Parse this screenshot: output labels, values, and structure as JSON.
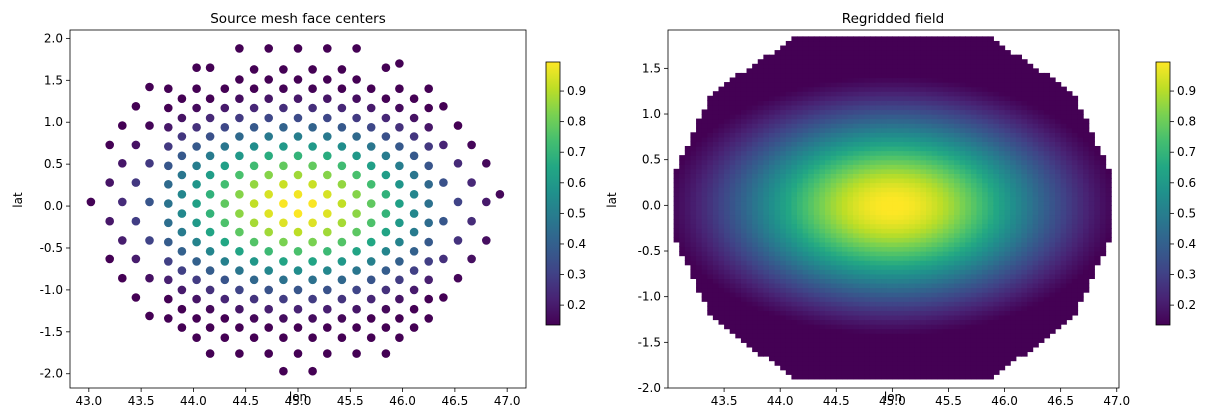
{
  "chart_data": [
    {
      "type": "scatter",
      "title": "Source mesh face centers",
      "xlabel": "lon",
      "ylabel": "lat",
      "xlim": [
        42.82,
        47.18
      ],
      "ylim": [
        -2.17,
        2.1
      ],
      "xticks": [
        "43.0",
        "43.5",
        "44.0",
        "44.5",
        "45.0",
        "45.5",
        "46.0",
        "46.5",
        "47.0"
      ],
      "yticks": [
        "-2.0",
        "-1.5",
        "-1.0",
        "-0.5",
        "0.0",
        "0.5",
        "1.0",
        "1.5",
        "2.0"
      ],
      "colorbar": {
        "ticks": [
          "0.2",
          "0.3",
          "0.4",
          "0.5",
          "0.6",
          "0.7",
          "0.8",
          "0.9"
        ],
        "vmin": 0.135,
        "vmax": 0.995
      },
      "colormap": "viridis",
      "center": [
        45.0,
        0.0
      ],
      "field": "exp(-(0.5*dlon^2 + 1.0*dlat^2))",
      "points": [
        [
          43.02,
          0.05
        ],
        [
          43.2,
          0.73
        ],
        [
          43.2,
          0.28
        ],
        [
          43.2,
          -0.18
        ],
        [
          43.2,
          -0.63
        ],
        [
          43.32,
          0.96
        ],
        [
          43.32,
          0.51
        ],
        [
          43.32,
          0.05
        ],
        [
          43.32,
          -0.41
        ],
        [
          43.32,
          -0.86
        ],
        [
          43.45,
          1.19
        ],
        [
          43.45,
          0.73
        ],
        [
          43.45,
          0.28
        ],
        [
          43.45,
          -0.18
        ],
        [
          43.45,
          -0.63
        ],
        [
          43.45,
          -1.09
        ],
        [
          43.58,
          1.42
        ],
        [
          43.58,
          0.96
        ],
        [
          43.58,
          0.51
        ],
        [
          43.58,
          0.05
        ],
        [
          43.58,
          -0.41
        ],
        [
          43.58,
          -0.86
        ],
        [
          43.58,
          -1.31
        ],
        [
          43.76,
          1.4
        ],
        [
          43.76,
          1.17
        ],
        [
          43.76,
          0.94
        ],
        [
          43.76,
          0.71
        ],
        [
          43.76,
          0.48
        ],
        [
          43.76,
          0.26
        ],
        [
          43.76,
          0.03
        ],
        [
          43.76,
          -0.2
        ],
        [
          43.76,
          -0.43
        ],
        [
          43.76,
          -0.66
        ],
        [
          43.76,
          -0.88
        ],
        [
          43.76,
          -1.11
        ],
        [
          43.76,
          -1.34
        ],
        [
          43.89,
          1.28
        ],
        [
          43.89,
          1.05
        ],
        [
          43.89,
          0.83
        ],
        [
          43.89,
          0.6
        ],
        [
          43.89,
          0.37
        ],
        [
          43.89,
          0.14
        ],
        [
          43.89,
          -0.09
        ],
        [
          43.89,
          -0.31
        ],
        [
          43.89,
          -0.54
        ],
        [
          43.89,
          -0.77
        ],
        [
          43.89,
          -1.0
        ],
        [
          43.89,
          -1.23
        ],
        [
          43.89,
          -1.45
        ],
        [
          44.03,
          1.65
        ],
        [
          44.03,
          1.4
        ],
        [
          44.03,
          1.17
        ],
        [
          44.03,
          0.94
        ],
        [
          44.03,
          0.71
        ],
        [
          44.03,
          0.48
        ],
        [
          44.03,
          0.26
        ],
        [
          44.03,
          0.03
        ],
        [
          44.03,
          -0.2
        ],
        [
          44.03,
          -0.43
        ],
        [
          44.03,
          -0.66
        ],
        [
          44.03,
          -0.88
        ],
        [
          44.03,
          -1.11
        ],
        [
          44.03,
          -1.34
        ],
        [
          44.03,
          -1.57
        ],
        [
          44.16,
          1.65
        ],
        [
          44.16,
          1.28
        ],
        [
          44.16,
          1.05
        ],
        [
          44.16,
          0.83
        ],
        [
          44.16,
          0.6
        ],
        [
          44.16,
          0.37
        ],
        [
          44.16,
          0.14
        ],
        [
          44.16,
          -0.09
        ],
        [
          44.16,
          -0.31
        ],
        [
          44.16,
          -0.54
        ],
        [
          44.16,
          -0.77
        ],
        [
          44.16,
          -1.0
        ],
        [
          44.16,
          -1.23
        ],
        [
          44.16,
          -1.45
        ],
        [
          44.16,
          -1.76
        ],
        [
          44.3,
          1.4
        ],
        [
          44.3,
          1.17
        ],
        [
          44.3,
          0.94
        ],
        [
          44.3,
          0.71
        ],
        [
          44.3,
          0.48
        ],
        [
          44.3,
          0.26
        ],
        [
          44.3,
          0.03
        ],
        [
          44.3,
          -0.2
        ],
        [
          44.3,
          -0.43
        ],
        [
          44.3,
          -0.66
        ],
        [
          44.3,
          -0.88
        ],
        [
          44.3,
          -1.11
        ],
        [
          44.3,
          -1.34
        ],
        [
          44.3,
          -1.57
        ],
        [
          44.44,
          1.88
        ],
        [
          44.44,
          1.51
        ],
        [
          44.44,
          1.28
        ],
        [
          44.44,
          1.05
        ],
        [
          44.44,
          0.83
        ],
        [
          44.44,
          0.6
        ],
        [
          44.44,
          0.37
        ],
        [
          44.44,
          0.14
        ],
        [
          44.44,
          -0.09
        ],
        [
          44.44,
          -0.31
        ],
        [
          44.44,
          -0.54
        ],
        [
          44.44,
          -0.77
        ],
        [
          44.44,
          -1.0
        ],
        [
          44.44,
          -1.23
        ],
        [
          44.44,
          -1.45
        ],
        [
          44.44,
          -1.76
        ],
        [
          44.58,
          1.63
        ],
        [
          44.58,
          1.4
        ],
        [
          44.58,
          1.17
        ],
        [
          44.58,
          0.94
        ],
        [
          44.58,
          0.71
        ],
        [
          44.58,
          0.48
        ],
        [
          44.58,
          0.26
        ],
        [
          44.58,
          0.03
        ],
        [
          44.58,
          -0.2
        ],
        [
          44.58,
          -0.43
        ],
        [
          44.58,
          -0.66
        ],
        [
          44.58,
          -0.88
        ],
        [
          44.58,
          -1.11
        ],
        [
          44.58,
          -1.34
        ],
        [
          44.58,
          -1.57
        ],
        [
          44.72,
          1.88
        ],
        [
          44.72,
          1.51
        ],
        [
          44.72,
          1.28
        ],
        [
          44.72,
          1.05
        ],
        [
          44.72,
          0.83
        ],
        [
          44.72,
          0.6
        ],
        [
          44.72,
          0.37
        ],
        [
          44.72,
          0.14
        ],
        [
          44.72,
          -0.09
        ],
        [
          44.72,
          -0.31
        ],
        [
          44.72,
          -0.54
        ],
        [
          44.72,
          -0.77
        ],
        [
          44.72,
          -1.0
        ],
        [
          44.72,
          -1.23
        ],
        [
          44.72,
          -1.45
        ],
        [
          44.72,
          -1.76
        ],
        [
          44.86,
          1.63
        ],
        [
          44.86,
          1.4
        ],
        [
          44.86,
          1.17
        ],
        [
          44.86,
          0.94
        ],
        [
          44.86,
          0.71
        ],
        [
          44.86,
          0.48
        ],
        [
          44.86,
          0.26
        ],
        [
          44.86,
          0.03
        ],
        [
          44.86,
          -0.2
        ],
        [
          44.86,
          -0.43
        ],
        [
          44.86,
          -0.66
        ],
        [
          44.86,
          -0.88
        ],
        [
          44.86,
          -1.11
        ],
        [
          44.86,
          -1.34
        ],
        [
          44.86,
          -1.57
        ],
        [
          44.86,
          -1.97
        ],
        [
          45.0,
          1.88
        ],
        [
          45.0,
          1.51
        ],
        [
          45.0,
          1.28
        ],
        [
          45.0,
          1.05
        ],
        [
          45.0,
          0.83
        ],
        [
          45.0,
          0.6
        ],
        [
          45.0,
          0.37
        ],
        [
          45.0,
          0.14
        ],
        [
          45.0,
          -0.09
        ],
        [
          45.0,
          -0.31
        ],
        [
          45.0,
          -0.54
        ],
        [
          45.0,
          -0.77
        ],
        [
          45.0,
          -1.0
        ],
        [
          45.0,
          -1.23
        ],
        [
          45.0,
          -1.45
        ],
        [
          45.0,
          -1.76
        ],
        [
          45.14,
          1.63
        ],
        [
          45.14,
          1.4
        ],
        [
          45.14,
          1.17
        ],
        [
          45.14,
          0.94
        ],
        [
          45.14,
          0.71
        ],
        [
          45.14,
          0.48
        ],
        [
          45.14,
          0.26
        ],
        [
          45.14,
          0.03
        ],
        [
          45.14,
          -0.2
        ],
        [
          45.14,
          -0.43
        ],
        [
          45.14,
          -0.66
        ],
        [
          45.14,
          -0.88
        ],
        [
          45.14,
          -1.11
        ],
        [
          45.14,
          -1.34
        ],
        [
          45.14,
          -1.57
        ],
        [
          45.14,
          -1.97
        ],
        [
          45.28,
          1.88
        ],
        [
          45.28,
          1.51
        ],
        [
          45.28,
          1.28
        ],
        [
          45.28,
          1.05
        ],
        [
          45.28,
          0.83
        ],
        [
          45.28,
          0.6
        ],
        [
          45.28,
          0.37
        ],
        [
          45.28,
          0.14
        ],
        [
          45.28,
          -0.09
        ],
        [
          45.28,
          -0.31
        ],
        [
          45.28,
          -0.54
        ],
        [
          45.28,
          -0.77
        ],
        [
          45.28,
          -1.0
        ],
        [
          45.28,
          -1.23
        ],
        [
          45.28,
          -1.45
        ],
        [
          45.28,
          -1.76
        ],
        [
          45.42,
          1.63
        ],
        [
          45.42,
          1.4
        ],
        [
          45.42,
          1.17
        ],
        [
          45.42,
          0.94
        ],
        [
          45.42,
          0.71
        ],
        [
          45.42,
          0.48
        ],
        [
          45.42,
          0.26
        ],
        [
          45.42,
          0.03
        ],
        [
          45.42,
          -0.2
        ],
        [
          45.42,
          -0.43
        ],
        [
          45.42,
          -0.66
        ],
        [
          45.42,
          -0.88
        ],
        [
          45.42,
          -1.11
        ],
        [
          45.42,
          -1.34
        ],
        [
          45.42,
          -1.57
        ],
        [
          45.56,
          1.88
        ],
        [
          45.56,
          1.51
        ],
        [
          45.56,
          1.28
        ],
        [
          45.56,
          1.05
        ],
        [
          45.56,
          0.83
        ],
        [
          45.56,
          0.6
        ],
        [
          45.56,
          0.37
        ],
        [
          45.56,
          0.14
        ],
        [
          45.56,
          -0.09
        ],
        [
          45.56,
          -0.31
        ],
        [
          45.56,
          -0.54
        ],
        [
          45.56,
          -0.77
        ],
        [
          45.56,
          -1.0
        ],
        [
          45.56,
          -1.23
        ],
        [
          45.56,
          -1.45
        ],
        [
          45.56,
          -1.76
        ],
        [
          45.7,
          1.4
        ],
        [
          45.7,
          1.17
        ],
        [
          45.7,
          0.94
        ],
        [
          45.7,
          0.71
        ],
        [
          45.7,
          0.48
        ],
        [
          45.7,
          0.26
        ],
        [
          45.7,
          0.03
        ],
        [
          45.7,
          -0.2
        ],
        [
          45.7,
          -0.43
        ],
        [
          45.7,
          -0.66
        ],
        [
          45.7,
          -0.88
        ],
        [
          45.7,
          -1.11
        ],
        [
          45.7,
          -1.34
        ],
        [
          45.7,
          -1.57
        ],
        [
          45.84,
          1.65
        ],
        [
          45.84,
          1.28
        ],
        [
          45.84,
          1.05
        ],
        [
          45.84,
          0.83
        ],
        [
          45.84,
          0.6
        ],
        [
          45.84,
          0.37
        ],
        [
          45.84,
          0.14
        ],
        [
          45.84,
          -0.09
        ],
        [
          45.84,
          -0.31
        ],
        [
          45.84,
          -0.54
        ],
        [
          45.84,
          -0.77
        ],
        [
          45.84,
          -1.0
        ],
        [
          45.84,
          -1.23
        ],
        [
          45.84,
          -1.45
        ],
        [
          45.84,
          -1.76
        ],
        [
          45.97,
          1.7
        ],
        [
          45.97,
          1.4
        ],
        [
          45.97,
          1.17
        ],
        [
          45.97,
          0.94
        ],
        [
          45.97,
          0.71
        ],
        [
          45.97,
          0.48
        ],
        [
          45.97,
          0.26
        ],
        [
          45.97,
          0.03
        ],
        [
          45.97,
          -0.2
        ],
        [
          45.97,
          -0.43
        ],
        [
          45.97,
          -0.66
        ],
        [
          45.97,
          -0.88
        ],
        [
          45.97,
          -1.11
        ],
        [
          45.97,
          -1.34
        ],
        [
          45.97,
          -1.57
        ],
        [
          46.11,
          1.28
        ],
        [
          46.11,
          1.05
        ],
        [
          46.11,
          0.83
        ],
        [
          46.11,
          0.6
        ],
        [
          46.11,
          0.37
        ],
        [
          46.11,
          0.14
        ],
        [
          46.11,
          -0.09
        ],
        [
          46.11,
          -0.31
        ],
        [
          46.11,
          -0.54
        ],
        [
          46.11,
          -0.77
        ],
        [
          46.11,
          -1.0
        ],
        [
          46.11,
          -1.23
        ],
        [
          46.11,
          -1.45
        ],
        [
          46.25,
          1.4
        ],
        [
          46.25,
          1.17
        ],
        [
          46.25,
          0.94
        ],
        [
          46.25,
          0.71
        ],
        [
          46.25,
          0.48
        ],
        [
          46.25,
          0.26
        ],
        [
          46.25,
          0.03
        ],
        [
          46.25,
          -0.2
        ],
        [
          46.25,
          -0.43
        ],
        [
          46.25,
          -0.66
        ],
        [
          46.25,
          -0.88
        ],
        [
          46.25,
          -1.11
        ],
        [
          46.25,
          -1.34
        ],
        [
          46.39,
          1.19
        ],
        [
          46.39,
          0.73
        ],
        [
          46.39,
          0.28
        ],
        [
          46.39,
          -0.18
        ],
        [
          46.39,
          -0.63
        ],
        [
          46.39,
          -1.09
        ],
        [
          46.53,
          0.96
        ],
        [
          46.53,
          0.51
        ],
        [
          46.53,
          0.05
        ],
        [
          46.53,
          -0.41
        ],
        [
          46.53,
          -0.86
        ],
        [
          46.66,
          0.73
        ],
        [
          46.66,
          0.28
        ],
        [
          46.66,
          -0.18
        ],
        [
          46.66,
          -0.63
        ],
        [
          46.8,
          0.51
        ],
        [
          46.8,
          0.05
        ],
        [
          46.8,
          -0.41
        ],
        [
          46.93,
          0.14
        ]
      ]
    },
    {
      "type": "heatmap",
      "title": "Regridded field",
      "xlabel": "lon",
      "ylabel": "lat",
      "xlim": [
        43.0,
        47.02
      ],
      "ylim": [
        -2.0,
        1.92
      ],
      "xticks": [
        "43.5",
        "44.0",
        "44.5",
        "45.0",
        "45.5",
        "46.0",
        "46.5",
        "47.0"
      ],
      "yticks": [
        "-2.0",
        "-1.5",
        "-1.0",
        "-0.5",
        "0.0",
        "0.5",
        "1.0",
        "1.5"
      ],
      "colorbar": {
        "ticks": [
          "0.2",
          "0.3",
          "0.4",
          "0.5",
          "0.6",
          "0.7",
          "0.8",
          "0.9"
        ],
        "vmin": 0.135,
        "vmax": 0.995
      },
      "colormap": "viridis",
      "center": [
        45.0,
        0.0
      ],
      "field": "exp(-(0.5*dlon^2 + 1.0*dlat^2))",
      "cell_size": [
        0.05,
        0.05
      ],
      "domain_outline": [
        [
          44.15,
          1.85
        ],
        [
          45.85,
          1.85
        ],
        [
          46.6,
          1.25
        ],
        [
          46.95,
          0.35
        ],
        [
          46.95,
          -0.35
        ],
        [
          46.6,
          -1.25
        ],
        [
          45.85,
          -1.92
        ],
        [
          44.15,
          -1.92
        ],
        [
          43.4,
          -1.25
        ],
        [
          43.05,
          -0.35
        ],
        [
          43.05,
          0.35
        ],
        [
          43.4,
          1.25
        ]
      ]
    }
  ]
}
